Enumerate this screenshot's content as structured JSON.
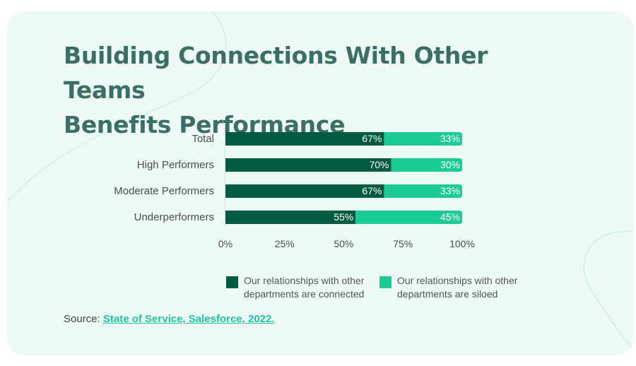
{
  "title_lines": [
    "Building Connections With Other Teams",
    "Benefits Performance"
  ],
  "colors": {
    "background": "#edf9f4",
    "title": "#3a6f66",
    "connected": "#005a3f",
    "siloed": "#19cc95",
    "link": "#1ec79a"
  },
  "chart_data": {
    "type": "bar",
    "orientation": "horizontal",
    "stacked": true,
    "categories": [
      "Total",
      "High Performers",
      "Moderate Performers",
      "Underperformers"
    ],
    "series": [
      {
        "name": "Our relationships with other departments are connected",
        "values": [
          67,
          70,
          67,
          55
        ],
        "labels": [
          "67%",
          "70%",
          "67%",
          "55%"
        ],
        "color": "#005a3f"
      },
      {
        "name": "Our relationships with other departments are siloed",
        "values": [
          33,
          30,
          33,
          45
        ],
        "labels": [
          "33%",
          "30%",
          "33%",
          "45%"
        ],
        "color": "#19cc95"
      }
    ],
    "xlim": [
      0,
      100
    ],
    "xticks": [
      0,
      25,
      50,
      75,
      100
    ],
    "xtick_labels": [
      "0%",
      "25%",
      "50%",
      "75%",
      "100%"
    ],
    "grid": false,
    "legend_position": "bottom"
  },
  "legend": {
    "connected_lines": [
      "Our relationships with other",
      "departments are connected"
    ],
    "siloed_lines": [
      "Our relationships with other",
      "departments are siloed"
    ]
  },
  "source": {
    "prefix": "Source: ",
    "link_text": "State of Service, Salesforce, 2022."
  }
}
